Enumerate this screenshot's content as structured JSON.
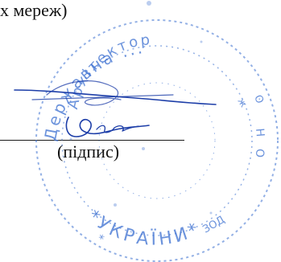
{
  "document": {
    "fragment_text": "х мереж)",
    "signature_caption": "(підпис)"
  },
  "stamp": {
    "ink_color": "#3b6fd0",
    "outer_ring_text": "Державна ...",
    "inner_ring_text": "Архітектор",
    "bottom_text": "*УКРАЇНИ*"
  },
  "signature": {
    "ink_color": "#1d3ea8"
  }
}
